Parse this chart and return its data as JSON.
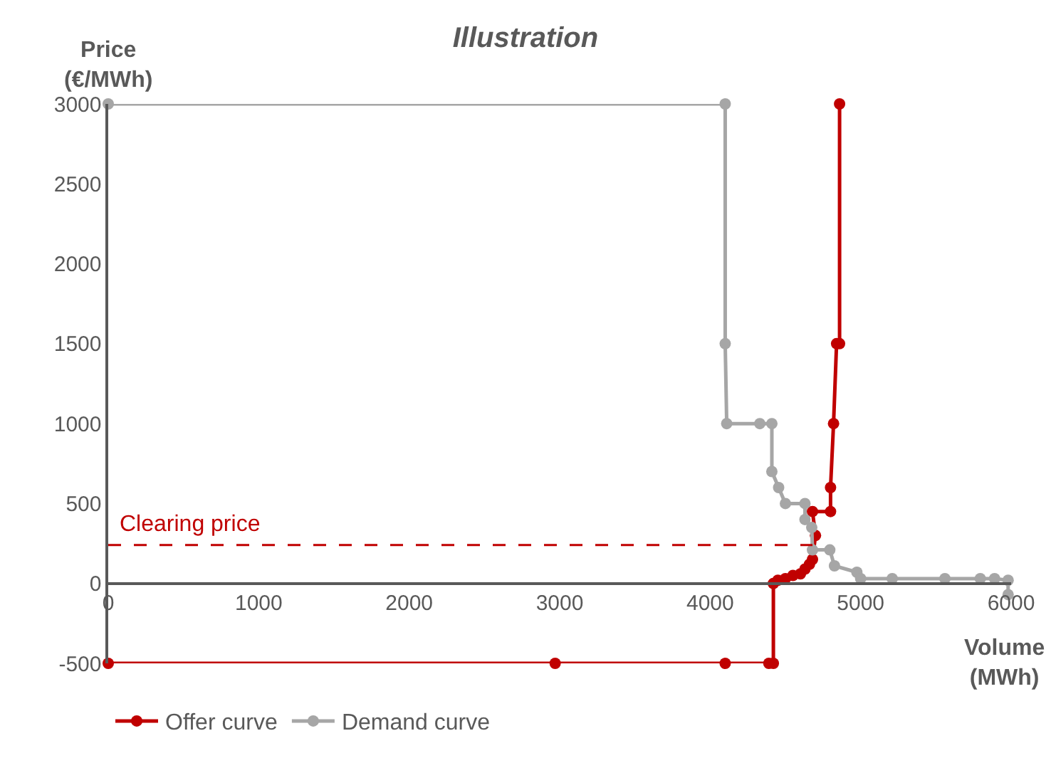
{
  "chart_data": {
    "type": "line",
    "title": "Illustration",
    "xlabel": "Volume (MWh)",
    "ylabel": "Price (€/MWh)",
    "xlim": [
      0,
      6000
    ],
    "xticks": [
      0,
      1000,
      2000,
      3000,
      4000,
      5000,
      6000
    ],
    "ylim": [
      -500,
      3000
    ],
    "yticks": [
      -500,
      0,
      500,
      1000,
      1500,
      2000,
      2500,
      3000
    ],
    "legend": "bottom",
    "marker": "circle",
    "line_style": "solid",
    "series": [
      {
        "name": "Offer curve",
        "color": "#c00000",
        "x": [
          0,
          2970,
          4100,
          4390,
          4420,
          4420,
          4450,
          4500,
          4550,
          4600,
          4630,
          4660,
          4680,
          4700,
          4680,
          4800,
          4800,
          4820,
          4840,
          4860,
          4860
        ],
        "values": [
          -500,
          -500,
          -500,
          -500,
          -500,
          0,
          20,
          30,
          50,
          60,
          90,
          120,
          150,
          300,
          450,
          450,
          600,
          1000,
          1500,
          1500,
          3000
        ]
      },
      {
        "name": "Demand curve",
        "color": "#a6a6a6",
        "x": [
          0,
          4100,
          4100,
          4110,
          4330,
          4410,
          4410,
          4455,
          4500,
          4630,
          4630,
          4675,
          4680,
          4795,
          4826,
          4975,
          5000,
          5210,
          5560,
          5795,
          5890,
          5980,
          5980
        ],
        "values": [
          3000,
          3000,
          1500,
          1000,
          1000,
          1000,
          700,
          600,
          500,
          500,
          400,
          350,
          210,
          210,
          110,
          70,
          30,
          30,
          30,
          30,
          30,
          20,
          -70
        ]
      },
      {
        "color": "#c00000",
        "x": [
          0,
          4680
        ],
        "values": [
          240,
          240
        ],
        "line_style": "dashed",
        "marker": "none"
      }
    ],
    "annotations": [
      {
        "text": "Clearing price",
        "x": 0,
        "y": 240
      }
    ]
  }
}
